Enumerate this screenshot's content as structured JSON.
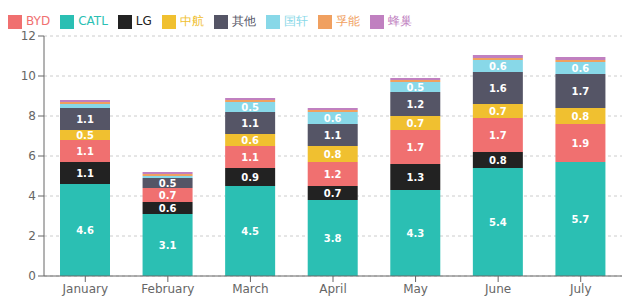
{
  "chart_data": {
    "type": "bar",
    "stacked": true,
    "grid": true,
    "legend": "upper left",
    "data_labels": true,
    "categories": [
      "January",
      "February",
      "March",
      "April",
      "May",
      "June",
      "July"
    ],
    "ylim": [
      0,
      12
    ],
    "yticks": [
      0,
      2,
      4,
      6,
      8,
      10,
      12
    ],
    "series": [
      {
        "name": "CATL",
        "color": "#2BBFB3",
        "values": [
          4.6,
          3.1,
          4.5,
          3.8,
          4.3,
          5.4,
          5.7
        ],
        "value_labels": [
          "4.6",
          "3.1",
          "4.5",
          "3.8",
          "4.3",
          "5.4",
          "5.7"
        ]
      },
      {
        "name": "LG",
        "color": "#222222",
        "values": [
          1.1,
          0.6,
          0.9,
          0.7,
          1.3,
          0.8,
          0.0
        ],
        "value_labels": [
          "1.1",
          "0.6",
          "0.9",
          "0.7",
          "1.3",
          "0.8",
          null
        ]
      },
      {
        "name": "BYD",
        "color": "#F07070",
        "values": [
          1.1,
          0.7,
          1.1,
          1.2,
          1.7,
          1.7,
          1.9
        ],
        "value_labels": [
          "1.1",
          "0.7",
          "1.1",
          "1.2",
          "1.7",
          "1.7",
          "1.9"
        ]
      },
      {
        "name": "中航",
        "color": "#F0C030",
        "values": [
          0.5,
          0.0,
          0.6,
          0.8,
          0.7,
          0.7,
          0.8
        ],
        "value_labels": [
          "0.5",
          null,
          "0.6",
          "0.8",
          "0.7",
          "0.7",
          "0.8"
        ]
      },
      {
        "name": "其他",
        "color": "#555566",
        "values": [
          1.1,
          0.5,
          1.1,
          1.1,
          1.2,
          1.6,
          1.7
        ],
        "value_labels": [
          "1.1",
          "0.5",
          "1.1",
          "1.1",
          "1.2",
          "1.6",
          "1.7"
        ]
      },
      {
        "name": "国轩",
        "color": "#88D8E8",
        "values": [
          0.2,
          0.1,
          0.5,
          0.6,
          0.5,
          0.6,
          0.6
        ],
        "value_labels": [
          null,
          null,
          "0.5",
          "0.6",
          "0.5",
          "0.6",
          "0.6"
        ]
      },
      {
        "name": "孚能",
        "color": "#F0A060",
        "values": [
          0.1,
          0.1,
          0.1,
          0.1,
          0.1,
          0.1,
          0.1
        ],
        "value_labels": [
          null,
          null,
          null,
          null,
          null,
          null,
          null
        ]
      },
      {
        "name": "蜂巢",
        "color": "#C080C0",
        "values": [
          0.1,
          0.1,
          0.1,
          0.1,
          0.1,
          0.15,
          0.15
        ],
        "value_labels": [
          null,
          null,
          null,
          null,
          null,
          null,
          null
        ]
      }
    ]
  }
}
